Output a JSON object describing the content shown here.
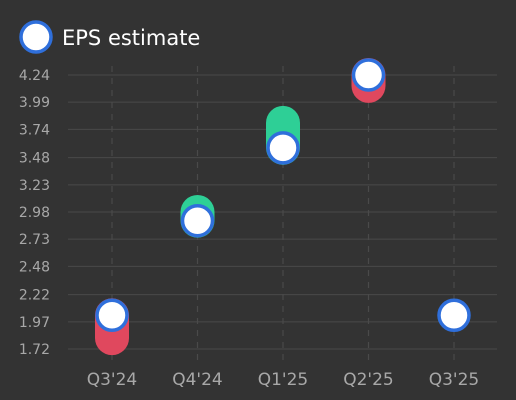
{
  "chart_data": {
    "type": "scatter",
    "title": "",
    "xlabel": "",
    "ylabel": "",
    "categories": [
      "Q3'24",
      "Q4'24",
      "Q1'25",
      "Q2'25",
      "Q3'25"
    ],
    "y_ticks": [
      "1.72",
      "1.97",
      "2.22",
      "2.48",
      "2.73",
      "2.98",
      "3.23",
      "3.48",
      "3.74",
      "3.99",
      "4.24"
    ],
    "ylim": [
      1.72,
      4.24
    ],
    "grid": {
      "horizontal": true,
      "vertical_dashed": true
    },
    "legend": {
      "placement": "top-left",
      "entries": [
        "EPS estimate"
      ]
    },
    "series": [
      {
        "name": "EPS estimate",
        "values": [
          2.03,
          2.9,
          3.57,
          4.24,
          2.03
        ]
      },
      {
        "values": [
          1.82,
          2.98,
          3.8,
          4.14,
          null
        ]
      }
    ],
    "colors": {
      "background": "#333333",
      "grid": "#4a4a4a",
      "estimate_fill": "#ffffff",
      "estimate_stroke": "#2f6fdb",
      "beat": "#2ecf96",
      "miss": "#e0485e",
      "tick_text": "#a8a8a8",
      "legend_text": "#ffffff"
    }
  }
}
